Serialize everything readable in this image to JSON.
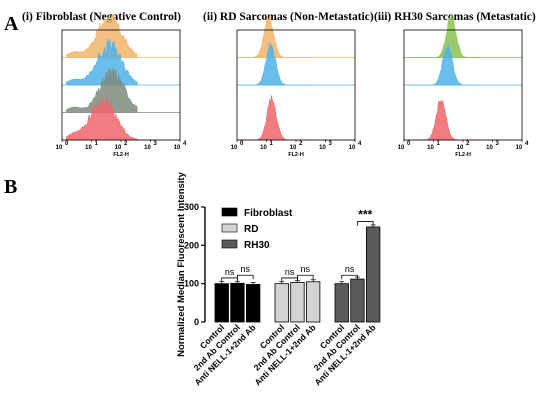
{
  "panel_a": {
    "letter": "A",
    "xlabel": "FL2-H",
    "x_ticks": [
      "10",
      "10",
      "10",
      "10",
      "10"
    ],
    "x_tick_exponents": [
      "0",
      "1",
      "2",
      "3",
      "4"
    ],
    "panels": [
      {
        "title": "(i) Fibroblast (Negative Control)"
      },
      {
        "title": "(ii) RD Sarcomas (Non-Metastatic)"
      },
      {
        "title": "(iii) RH30 Sarcomas (Metastatic)"
      }
    ],
    "colors": {
      "orange": "#F2B56B",
      "blue": "#4FB3E8",
      "grey": "#7E8C7E",
      "red": "#F0666A"
    }
  },
  "panel_b": {
    "letter": "B"
  },
  "chart_data": [
    {
      "type": "area",
      "x_scale": "log",
      "xlim": [
        1,
        10000
      ],
      "xlabel": "FL2-H",
      "title": "(i) Fibroblast (Negative Control)",
      "series": [
        {
          "peak": 40,
          "color": "#F2B56B"
        },
        {
          "peak": 40,
          "color": "#4FB3E8"
        },
        {
          "peak": 50,
          "color": "#7E8C7E"
        },
        {
          "peak": 25,
          "color": "#F0666A"
        }
      ]
    },
    {
      "type": "area",
      "x_scale": "log",
      "xlim": [
        1,
        10000
      ],
      "xlabel": "FL2-H",
      "title": "(ii) RD Sarcomas (Non-Metastatic)",
      "series": [
        {
          "peak": 12,
          "color": "#F2B56B"
        },
        {
          "peak": 14,
          "color": "#4FB3E8"
        },
        {
          "peak": 15,
          "color": "#F0666A"
        }
      ]
    },
    {
      "type": "area",
      "x_scale": "log",
      "xlim": [
        1,
        10000
      ],
      "xlabel": "FL2-H",
      "title": "(iii) RH30 Sarcomas (Metastatic)",
      "series": [
        {
          "peak": 40,
          "color": "#8CC152"
        },
        {
          "peak": 30,
          "color": "#4FB3E8"
        },
        {
          "peak": 18,
          "color": "#F0666A"
        }
      ]
    },
    {
      "type": "bar",
      "ylabel": "Normalized Median Fluorescent Intensity",
      "ylim": [
        0,
        300
      ],
      "y_ticks": [
        0,
        100,
        200,
        300
      ],
      "categories": [
        "Control",
        "2nd Ab Control",
        "Anti NELL-1+2nd Ab"
      ],
      "legend_position": "top-left",
      "series": [
        {
          "name": "Fibroblast",
          "color": "#000000",
          "values": [
            100,
            101,
            98
          ]
        },
        {
          "name": "RD",
          "color": "#D3D3D3",
          "values": [
            100,
            103,
            105
          ]
        },
        {
          "name": "RH30",
          "color": "#5A5A5A",
          "values": [
            100,
            112,
            248
          ]
        }
      ],
      "significance": [
        {
          "group": 0,
          "label": "ns"
        },
        {
          "group": 0,
          "label": "ns"
        },
        {
          "group": 1,
          "label": "ns"
        },
        {
          "group": 1,
          "label": "ns"
        },
        {
          "group": 2,
          "label": "ns"
        },
        {
          "group": 2,
          "label": "***"
        }
      ]
    }
  ]
}
